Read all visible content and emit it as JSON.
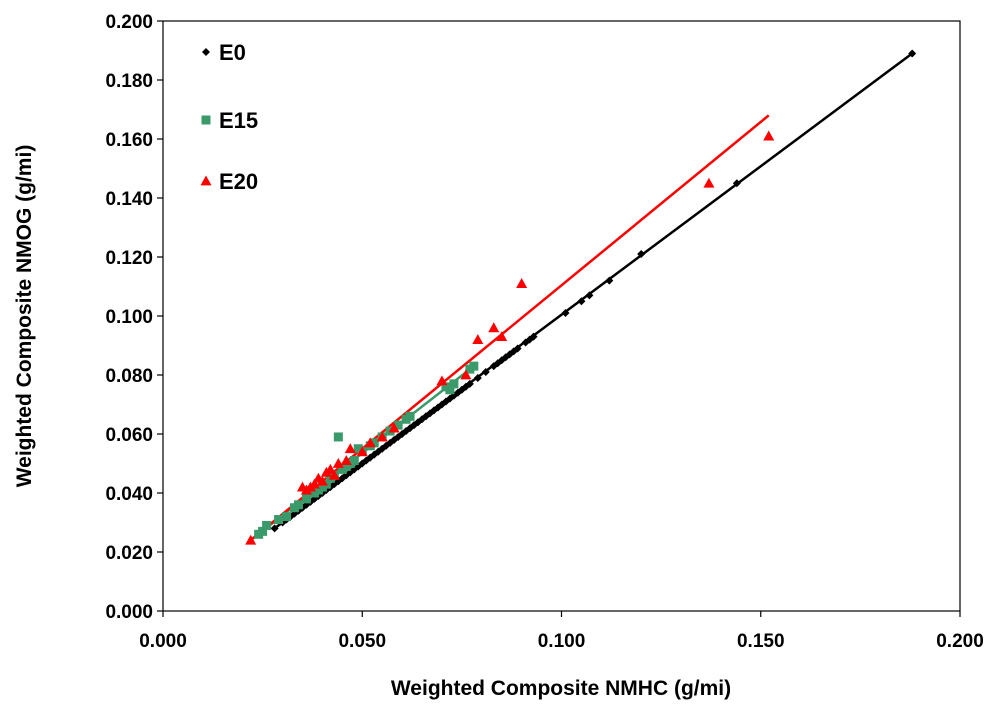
{
  "chart_data": {
    "type": "scatter",
    "title": "",
    "xlabel": "Weighted Composite NMHC (g/mi)",
    "ylabel": "Weighted Composite  NMOG (g/mi)",
    "xlim": [
      0.0,
      0.2
    ],
    "ylim": [
      0.0,
      0.2
    ],
    "x_ticks": [
      "0.000",
      "0.050",
      "0.100",
      "0.150",
      "0.200"
    ],
    "y_ticks": [
      "0.000",
      "0.020",
      "0.040",
      "0.060",
      "0.080",
      "0.100",
      "0.120",
      "0.140",
      "0.160",
      "0.180",
      "0.200"
    ],
    "grid": false,
    "legend_position": "top-left",
    "series": [
      {
        "name": "E0",
        "color": "#000000",
        "marker": "diamond",
        "x": [
          0.028,
          0.03,
          0.031,
          0.032,
          0.033,
          0.034,
          0.035,
          0.036,
          0.037,
          0.038,
          0.039,
          0.04,
          0.041,
          0.042,
          0.043,
          0.044,
          0.045,
          0.046,
          0.047,
          0.048,
          0.049,
          0.05,
          0.051,
          0.052,
          0.053,
          0.054,
          0.055,
          0.056,
          0.057,
          0.058,
          0.059,
          0.06,
          0.061,
          0.062,
          0.063,
          0.064,
          0.065,
          0.066,
          0.067,
          0.068,
          0.069,
          0.07,
          0.071,
          0.072,
          0.073,
          0.074,
          0.075,
          0.076,
          0.077,
          0.079,
          0.081,
          0.083,
          0.084,
          0.085,
          0.086,
          0.087,
          0.088,
          0.089,
          0.091,
          0.092,
          0.093,
          0.101,
          0.105,
          0.107,
          0.112,
          0.12,
          0.144,
          0.188
        ],
        "y": [
          0.028,
          0.03,
          0.031,
          0.032,
          0.033,
          0.034,
          0.035,
          0.036,
          0.037,
          0.038,
          0.039,
          0.04,
          0.041,
          0.042,
          0.043,
          0.044,
          0.045,
          0.046,
          0.047,
          0.048,
          0.049,
          0.05,
          0.051,
          0.052,
          0.053,
          0.054,
          0.055,
          0.056,
          0.057,
          0.058,
          0.059,
          0.06,
          0.061,
          0.062,
          0.063,
          0.064,
          0.065,
          0.066,
          0.067,
          0.068,
          0.069,
          0.07,
          0.071,
          0.072,
          0.073,
          0.074,
          0.075,
          0.076,
          0.077,
          0.079,
          0.081,
          0.083,
          0.084,
          0.085,
          0.086,
          0.087,
          0.088,
          0.089,
          0.091,
          0.092,
          0.093,
          0.101,
          0.105,
          0.107,
          0.112,
          0.121,
          0.145,
          0.189
        ],
        "trendline": {
          "x": [
            0.028,
            0.188
          ],
          "y": [
            0.028,
            0.189
          ]
        }
      },
      {
        "name": "E15",
        "color": "#3a9a6a",
        "marker": "square",
        "x": [
          0.024,
          0.025,
          0.026,
          0.029,
          0.031,
          0.033,
          0.034,
          0.036,
          0.038,
          0.039,
          0.04,
          0.041,
          0.042,
          0.043,
          0.044,
          0.045,
          0.046,
          0.047,
          0.048,
          0.049,
          0.05,
          0.052,
          0.053,
          0.055,
          0.057,
          0.059,
          0.061,
          0.062,
          0.071,
          0.072,
          0.073,
          0.077,
          0.078
        ],
        "y": [
          0.026,
          0.027,
          0.029,
          0.031,
          0.032,
          0.035,
          0.036,
          0.038,
          0.04,
          0.041,
          0.042,
          0.043,
          0.045,
          0.046,
          0.059,
          0.048,
          0.049,
          0.05,
          0.051,
          0.055,
          0.054,
          0.056,
          0.057,
          0.059,
          0.061,
          0.063,
          0.065,
          0.066,
          0.076,
          0.075,
          0.077,
          0.082,
          0.083
        ],
        "trendline": {
          "x": [
            0.022,
            0.078
          ],
          "y": [
            0.024,
            0.083
          ]
        }
      },
      {
        "name": "E20",
        "color": "#ff0000",
        "marker": "triangle",
        "x": [
          0.022,
          0.035,
          0.036,
          0.037,
          0.038,
          0.039,
          0.04,
          0.041,
          0.042,
          0.043,
          0.044,
          0.046,
          0.047,
          0.05,
          0.052,
          0.055,
          0.058,
          0.07,
          0.076,
          0.079,
          0.083,
          0.085,
          0.09,
          0.137,
          0.152
        ],
        "y": [
          0.024,
          0.042,
          0.041,
          0.042,
          0.043,
          0.045,
          0.044,
          0.047,
          0.048,
          0.046,
          0.05,
          0.051,
          0.055,
          0.054,
          0.057,
          0.059,
          0.062,
          0.078,
          0.08,
          0.092,
          0.096,
          0.093,
          0.111,
          0.145,
          0.161
        ],
        "trendline": {
          "x": [
            0.022,
            0.152
          ],
          "y": [
            0.024,
            0.168
          ]
        }
      }
    ]
  }
}
